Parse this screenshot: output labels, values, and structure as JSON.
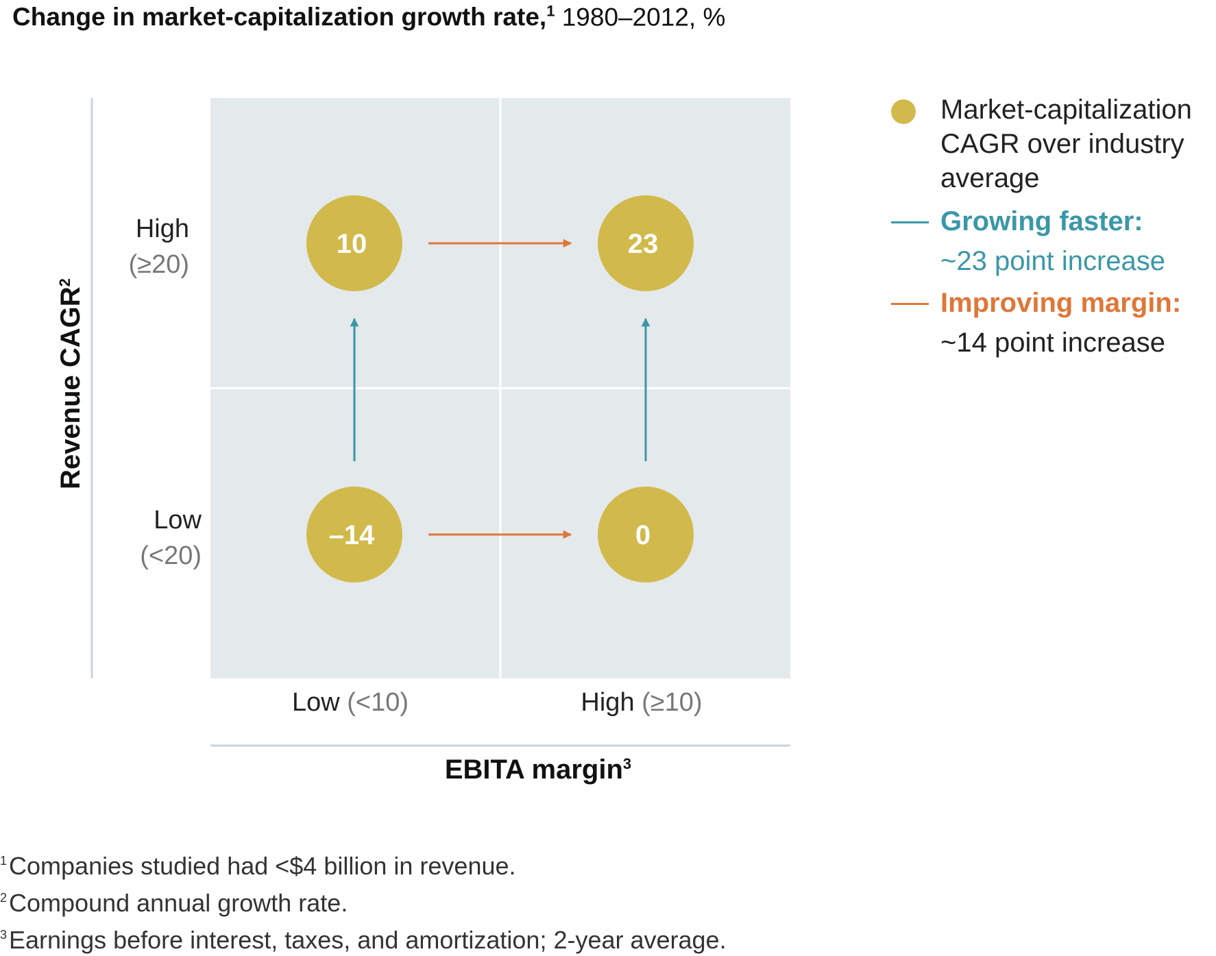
{
  "title": {
    "main": "Change in market-capitalization growth rate,",
    "sup": "1",
    "rest": " 1980–2012, %"
  },
  "chart_data": {
    "type": "matrix",
    "xlabel": "EBITA margin",
    "xlabel_sup": "3",
    "ylabel": "Revenue CAGR",
    "ylabel_sup": "2",
    "x_categories": [
      {
        "main": "Low",
        "qual": "(<10)"
      },
      {
        "main": "High",
        "qual": "(≥10)"
      }
    ],
    "y_categories": [
      {
        "main": "High",
        "qual": "(≥20)"
      },
      {
        "main": "Low",
        "qual": "(<20)"
      }
    ],
    "cells": [
      {
        "revenue": "High",
        "margin": "Low",
        "value": 10,
        "label": "10"
      },
      {
        "revenue": "High",
        "margin": "High",
        "value": 23,
        "label": "23"
      },
      {
        "revenue": "Low",
        "margin": "Low",
        "value": -14,
        "label": "–14"
      },
      {
        "revenue": "Low",
        "margin": "High",
        "value": 0,
        "label": "0"
      }
    ],
    "arrows": [
      {
        "kind": "growing",
        "from": "Low/Low",
        "to": "High/Low"
      },
      {
        "kind": "growing",
        "from": "Low/High",
        "to": "High/High"
      },
      {
        "kind": "margin",
        "from": "High/Low",
        "to": "High/High"
      },
      {
        "kind": "margin",
        "from": "Low/Low",
        "to": "Low/High"
      }
    ],
    "legend_position": "right"
  },
  "legend": {
    "bubble_label": "Market-capitalization CAGR over industry average",
    "growing_head": "Growing faster:",
    "growing_sub": "~23 point increase",
    "margin_head": "Improving margin:",
    "margin_sub": "~14 point increase"
  },
  "footnotes": [
    {
      "num": "1",
      "text": "Companies studied had <$4 billion in revenue."
    },
    {
      "num": "2",
      "text": "Compound annual growth rate."
    },
    {
      "num": "3",
      "text": "Earnings before interest, taxes, and amortization; 2-year average."
    }
  ],
  "colors": {
    "bubble": "#D1BA4B",
    "quadrant_bg": "#E4E9EC",
    "growing": "#3A97A8",
    "margin": "#E07638",
    "axis_line": "#C9D3DB",
    "qualifier_text": "#777777"
  }
}
